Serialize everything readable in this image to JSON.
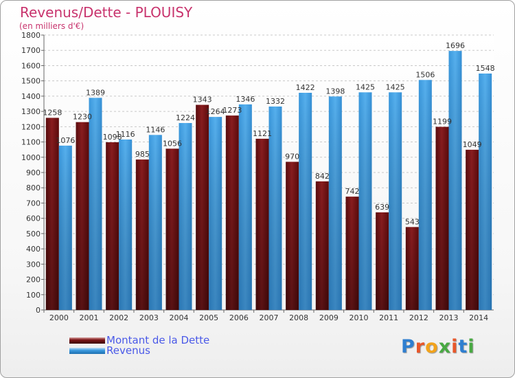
{
  "title": "Revenus/Dette - PLOUISY",
  "subtitle": "(en milliers d'€)",
  "legend": {
    "debt_label": "Montant de la Dette",
    "revenue_label": "Revenus"
  },
  "logo_text": "Proxiti",
  "colors": {
    "debt": "#7a1416",
    "revenue": "#3d9be0",
    "title": "#c8336d",
    "legend_text": "#4a59e8"
  },
  "chart_data": {
    "type": "bar",
    "categories": [
      "2000",
      "2001",
      "2002",
      "2003",
      "2004",
      "2005",
      "2006",
      "2007",
      "2008",
      "2009",
      "2010",
      "2011",
      "2012",
      "2013",
      "2014"
    ],
    "series": [
      {
        "name": "Montant de la Dette",
        "values": [
          1258,
          1230,
          1098,
          985,
          1056,
          1343,
          1273,
          1121,
          970,
          842,
          742,
          639,
          543,
          1199,
          1049
        ]
      },
      {
        "name": "Revenus",
        "values": [
          1076,
          1389,
          1116,
          1146,
          1224,
          1264,
          1346,
          1332,
          1422,
          1398,
          1425,
          1425,
          1506,
          1696,
          1548
        ]
      }
    ],
    "yticks": [
      0,
      100,
      200,
      300,
      400,
      500,
      600,
      700,
      800,
      900,
      1000,
      1100,
      1200,
      1300,
      1400,
      1500,
      1600,
      1700,
      1800
    ],
    "ylim": [
      0,
      1800
    ],
    "grid": true,
    "legend_position": "bottom-left"
  }
}
